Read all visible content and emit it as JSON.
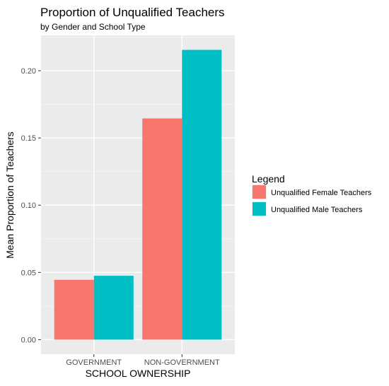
{
  "chart_data": {
    "type": "bar",
    "title": "Proportion of Unqualified Teachers",
    "subtitle": "by Gender and School Type",
    "xlabel": "SCHOOL OWNERSHIP",
    "ylabel": "Mean Proportion of Teachers",
    "categories": [
      "GOVERNMENT",
      "NON-GOVERNMENT"
    ],
    "series": [
      {
        "name": "Unqualified Female Teachers",
        "color": "#F8766D",
        "values": [
          0.0445,
          0.1645
        ]
      },
      {
        "name": "Unqualified Male Teachers",
        "color": "#00BFC4",
        "values": [
          0.0475,
          0.2155
        ]
      }
    ],
    "ylim": [
      -0.0108,
      0.2263
    ],
    "yticks": [
      0.0,
      0.05,
      0.1,
      0.15,
      0.2
    ],
    "ytick_labels": [
      "0.00",
      "0.05",
      "0.10",
      "0.15",
      "0.20"
    ],
    "legend": {
      "title": "Legend",
      "position": "right"
    },
    "grid": true,
    "panel_background": "#EBEBEB"
  }
}
